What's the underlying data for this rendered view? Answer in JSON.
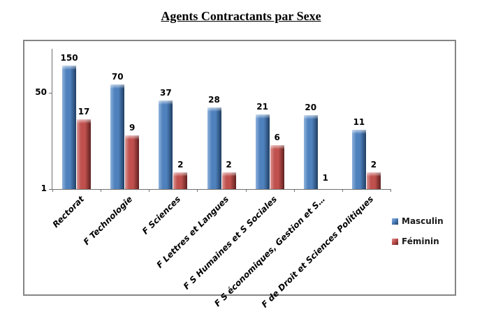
{
  "title": "Agents Contractants par Sexe",
  "chart_data": {
    "type": "bar",
    "scale": "log",
    "title": "Agents Contractants par Sexe",
    "categories": [
      "Rectorat",
      "F Technologie",
      "F Sciences",
      "F Lettres et Langues",
      "F S Humaines et S Sociales",
      "F S économiques, Gestion et S…",
      "F de Droit et Sciences Politiques"
    ],
    "series": [
      {
        "name": "Masculin",
        "color": "#4F81BD",
        "color_light": "#8FB2DD",
        "color_dark": "#1F3E63",
        "values": [
          150,
          70,
          37,
          28,
          21,
          20,
          11
        ]
      },
      {
        "name": "Féminin",
        "color": "#C0504D",
        "color_light": "#DA9694",
        "color_dark": "#5E2120",
        "values": [
          17,
          9,
          2,
          2,
          6,
          1,
          2
        ]
      }
    ],
    "y_ticks": [
      50,
      1
    ],
    "ylim": [
      1,
      300
    ],
    "legend_position": "right",
    "grid": false,
    "data_labels": true
  }
}
